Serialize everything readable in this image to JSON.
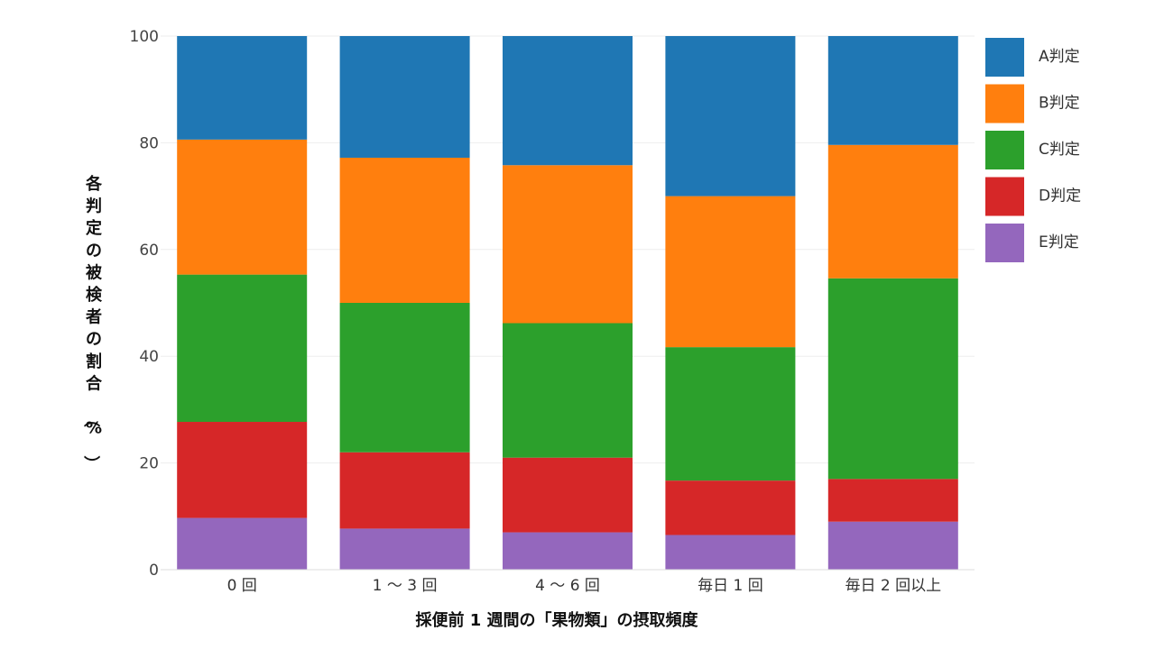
{
  "chart_data": {
    "type": "bar",
    "stacked": true,
    "categories": [
      "0 回",
      "1 ～ 3 回",
      "4 ～ 6 回",
      "毎日 1 回",
      "毎日 2 回以上"
    ],
    "series": [
      {
        "name": "E判定",
        "color": "#9467bd",
        "values": [
          9.7,
          7.7,
          7.0,
          6.5,
          9.0
        ]
      },
      {
        "name": "D判定",
        "color": "#d62728",
        "values": [
          18.0,
          14.3,
          14.0,
          10.2,
          8.0
        ]
      },
      {
        "name": "C判定",
        "color": "#2ca02c",
        "values": [
          27.6,
          28.0,
          25.2,
          25.0,
          37.6
        ]
      },
      {
        "name": "B判定",
        "color": "#ff7f0e",
        "values": [
          25.3,
          27.2,
          29.6,
          28.3,
          25.0
        ]
      },
      {
        "name": "A判定",
        "color": "#1f77b4",
        "values": [
          19.4,
          22.8,
          24.2,
          30.0,
          20.4
        ]
      }
    ],
    "legend_order": [
      "A判定",
      "B判定",
      "C判定",
      "D判定",
      "E判定"
    ],
    "xlabel": "採便前 1 週間の「果物類」の摂取頻度",
    "ylabel": "各判定の被検者の割合（%）",
    "ylim": [
      0,
      100
    ],
    "yticks": [
      0,
      20,
      40,
      60,
      80,
      100
    ],
    "grid": true,
    "legend_position": "right"
  }
}
